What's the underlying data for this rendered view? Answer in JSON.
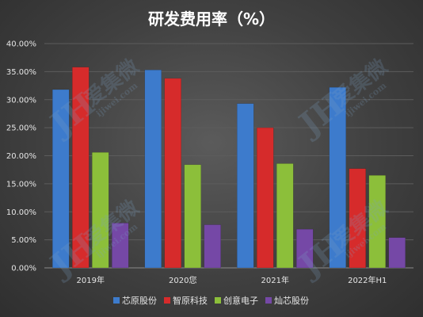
{
  "chart_data": {
    "type": "bar",
    "title": "研发费用率（%）",
    "categories": [
      "2019年",
      "2020您",
      "2021年",
      "2022年H1"
    ],
    "series": [
      {
        "name": "芯原股份",
        "color": "#3d7bcc",
        "values": [
          31.8,
          35.3,
          29.3,
          32.2
        ]
      },
      {
        "name": "智原科技",
        "color": "#d62b2b",
        "values": [
          35.8,
          33.8,
          25.0,
          17.7
        ]
      },
      {
        "name": "创意电子",
        "color": "#8cbf3a",
        "values": [
          20.6,
          18.4,
          18.6,
          16.5
        ]
      },
      {
        "name": "灿芯股份",
        "color": "#7548a6",
        "values": [
          8.0,
          7.7,
          6.9,
          5.4
        ]
      }
    ],
    "yticks": [
      "0.00%",
      "5.00%",
      "10.00%",
      "15.00%",
      "20.00%",
      "25.00%",
      "30.00%",
      "35.00%",
      "40.00%"
    ],
    "ylim": [
      0,
      40
    ],
    "grid": true,
    "legend_position": "bottom",
    "xlabel": "",
    "ylabel": ""
  },
  "watermark": {
    "logo_text": "JH",
    "name_text": "爱集微",
    "url_text": "ijiwei.com"
  }
}
